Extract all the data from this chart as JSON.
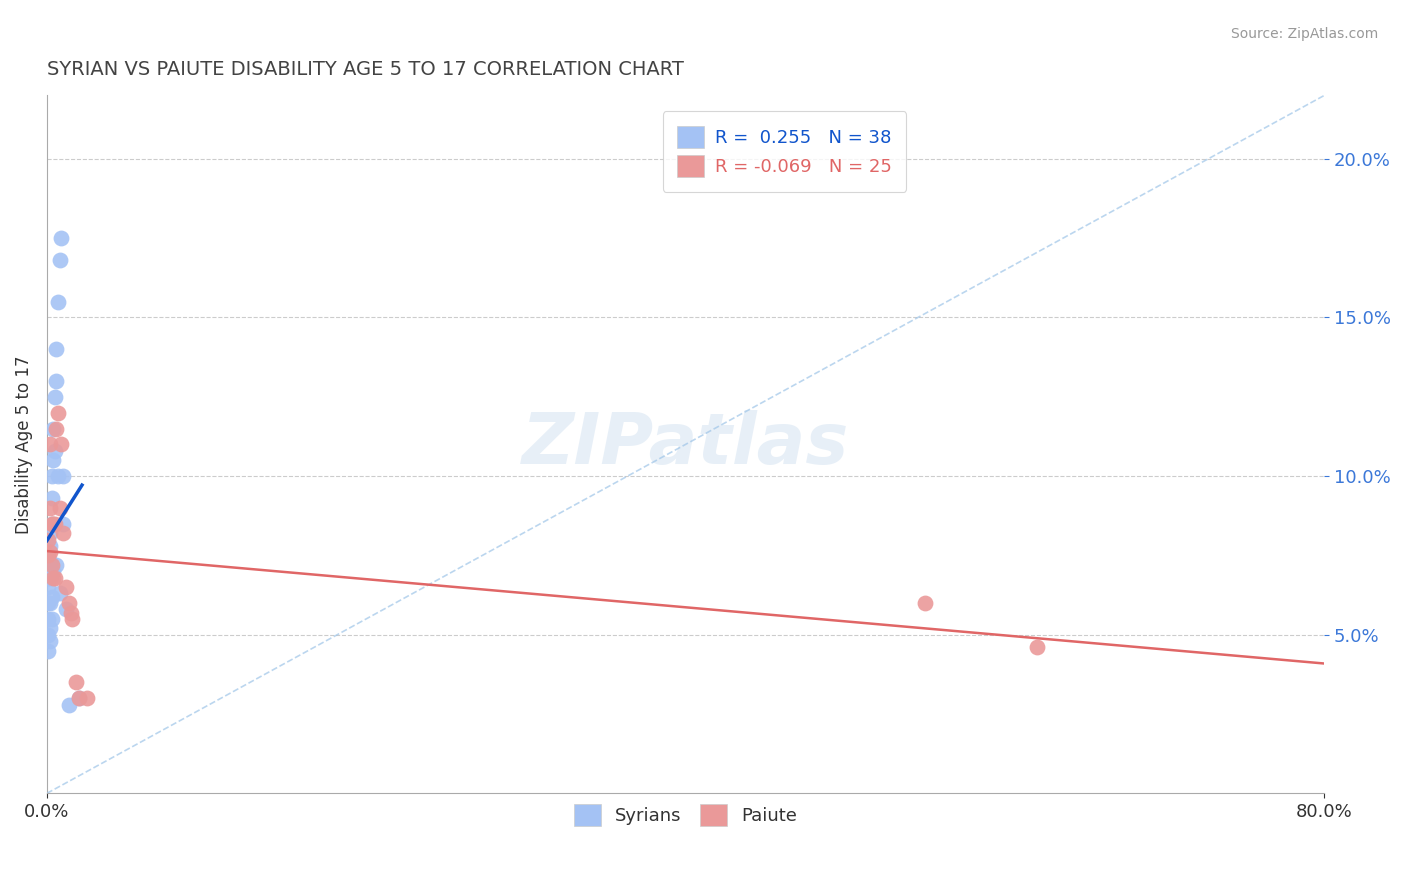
{
  "title": "SYRIAN VS PAIUTE DISABILITY AGE 5 TO 17 CORRELATION CHART",
  "source": "Source: ZipAtlas.com",
  "xlim": [
    0.0,
    0.8
  ],
  "ylim": [
    0.0,
    0.22
  ],
  "ylabel": "Disability Age 5 to 17",
  "legend_labels": [
    "Syrians",
    "Paiute"
  ],
  "R_syrian": 0.255,
  "N_syrian": 38,
  "R_paiute": -0.069,
  "N_paiute": 25,
  "syrian_color": "#a4c2f4",
  "paiute_color": "#ea9999",
  "syrian_trend_color": "#1155cc",
  "paiute_trend_color": "#e06666",
  "diagonal_color": "#9fc5e8",
  "background_color": "#ffffff",
  "grid_color": "#cccccc",
  "syrian_x": [
    0.001,
    0.001,
    0.001,
    0.001,
    0.001,
    0.001,
    0.001,
    0.001,
    0.002,
    0.002,
    0.002,
    0.002,
    0.002,
    0.002,
    0.002,
    0.003,
    0.003,
    0.003,
    0.003,
    0.003,
    0.004,
    0.004,
    0.004,
    0.005,
    0.005,
    0.006,
    0.006,
    0.006,
    0.007,
    0.007,
    0.008,
    0.008,
    0.009,
    0.01,
    0.01,
    0.012,
    0.014,
    0.02
  ],
  "syrian_y": [
    0.075,
    0.071,
    0.068,
    0.065,
    0.06,
    0.055,
    0.05,
    0.045,
    0.082,
    0.078,
    0.073,
    0.068,
    0.06,
    0.052,
    0.048,
    0.1,
    0.093,
    0.085,
    0.062,
    0.055,
    0.115,
    0.105,
    0.07,
    0.125,
    0.108,
    0.14,
    0.13,
    0.072,
    0.155,
    0.1,
    0.168,
    0.063,
    0.175,
    0.1,
    0.085,
    0.058,
    0.028,
    0.03
  ],
  "paiute_x": [
    0.001,
    0.001,
    0.002,
    0.002,
    0.002,
    0.003,
    0.003,
    0.004,
    0.004,
    0.005,
    0.005,
    0.006,
    0.007,
    0.008,
    0.009,
    0.01,
    0.012,
    0.014,
    0.015,
    0.016,
    0.018,
    0.02,
    0.025,
    0.55,
    0.62
  ],
  "paiute_y": [
    0.08,
    0.075,
    0.09,
    0.11,
    0.076,
    0.085,
    0.072,
    0.085,
    0.068,
    0.085,
    0.068,
    0.115,
    0.12,
    0.09,
    0.11,
    0.082,
    0.065,
    0.06,
    0.057,
    0.055,
    0.035,
    0.03,
    0.03,
    0.06,
    0.046
  ]
}
